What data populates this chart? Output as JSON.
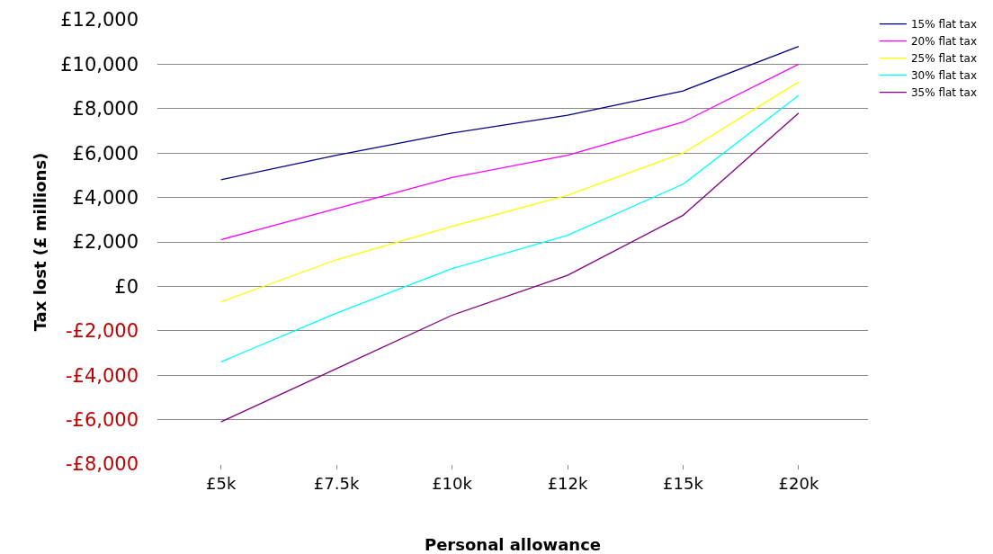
{
  "chart_data": {
    "type": "line",
    "xlabel": "Personal allowance",
    "ylabel": "Tax lost (£ millions)",
    "categories": [
      "£5k",
      "£7.5k",
      "£10k",
      "£12k",
      "£15k",
      "£20k"
    ],
    "series": [
      {
        "name": "15% flat tax",
        "color": "#000080",
        "values": [
          4800,
          5900,
          6900,
          7700,
          8800,
          10800
        ]
      },
      {
        "name": "20% flat tax",
        "color": "#ff00ff",
        "values": [
          2100,
          3500,
          4900,
          5900,
          7400,
          10000
        ]
      },
      {
        "name": "25% flat tax",
        "color": "#ffff00",
        "values": [
          -700,
          1200,
          2700,
          4100,
          6000,
          9200
        ]
      },
      {
        "name": "30% flat tax",
        "color": "#00ffff",
        "values": [
          -3400,
          -1200,
          800,
          2300,
          4600,
          8600
        ]
      },
      {
        "name": "35% flat tax",
        "color": "#800080",
        "values": [
          -6100,
          -3700,
          -1300,
          500,
          3200,
          7800
        ]
      }
    ],
    "ylim": [
      -8000,
      12000
    ],
    "yticks": [
      {
        "value": -8000,
        "label": "-£8,000"
      },
      {
        "value": -6000,
        "label": "-£6,000"
      },
      {
        "value": -4000,
        "label": "-£4,000"
      },
      {
        "value": -2000,
        "label": "-£2,000"
      },
      {
        "value": 0,
        "label": "£0"
      },
      {
        "value": 2000,
        "label": "£2,000"
      },
      {
        "value": 4000,
        "label": "£4,000"
      },
      {
        "value": 6000,
        "label": "£6,000"
      },
      {
        "value": 8000,
        "label": "£8,000"
      },
      {
        "value": 10000,
        "label": "£10,000"
      },
      {
        "value": 12000,
        "label": "£12,000"
      }
    ],
    "grid": "y",
    "legend": "top right",
    "marker": "none",
    "line_style": "solid"
  }
}
